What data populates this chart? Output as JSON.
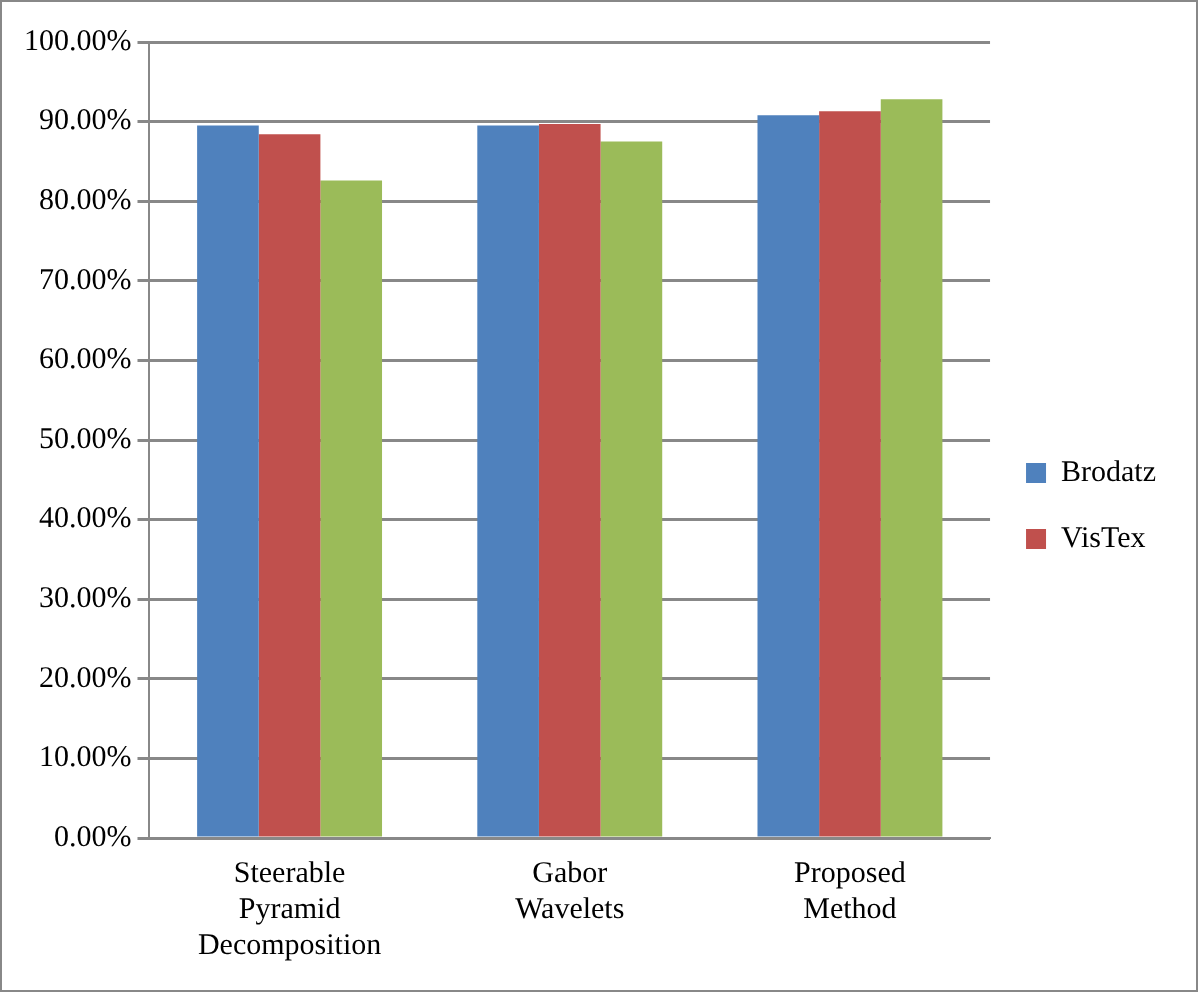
{
  "chart_data": {
    "type": "bar",
    "categories": [
      "Steerable Pyramid Decomposition",
      "Gabor Wavelets",
      "Proposed Method"
    ],
    "series": [
      {
        "name": "Brodatz",
        "color": "#4f81bd",
        "values": [
          89.5,
          89.5,
          90.8
        ]
      },
      {
        "name": "VisTex",
        "color": "#c0504d",
        "values": [
          88.4,
          89.7,
          91.3
        ]
      },
      {
        "color": "#9bbb59",
        "values": [
          82.6,
          87.5,
          92.8
        ]
      }
    ],
    "ylim": [
      0,
      100
    ],
    "yticks": [
      {
        "value": 0,
        "label": "0.00%"
      },
      {
        "value": 10,
        "label": "10.00%"
      },
      {
        "value": 20,
        "label": "20.00%"
      },
      {
        "value": 30,
        "label": "30.00%"
      },
      {
        "value": 40,
        "label": "40.00%"
      },
      {
        "value": 50,
        "label": "50.00%"
      },
      {
        "value": 60,
        "label": "60.00%"
      },
      {
        "value": 70,
        "label": "70.00%"
      },
      {
        "value": 80,
        "label": "80.00%"
      },
      {
        "value": 90,
        "label": "90.00%"
      },
      {
        "value": 100,
        "label": "100.00%"
      }
    ],
    "grid": "y",
    "legend": "right"
  }
}
